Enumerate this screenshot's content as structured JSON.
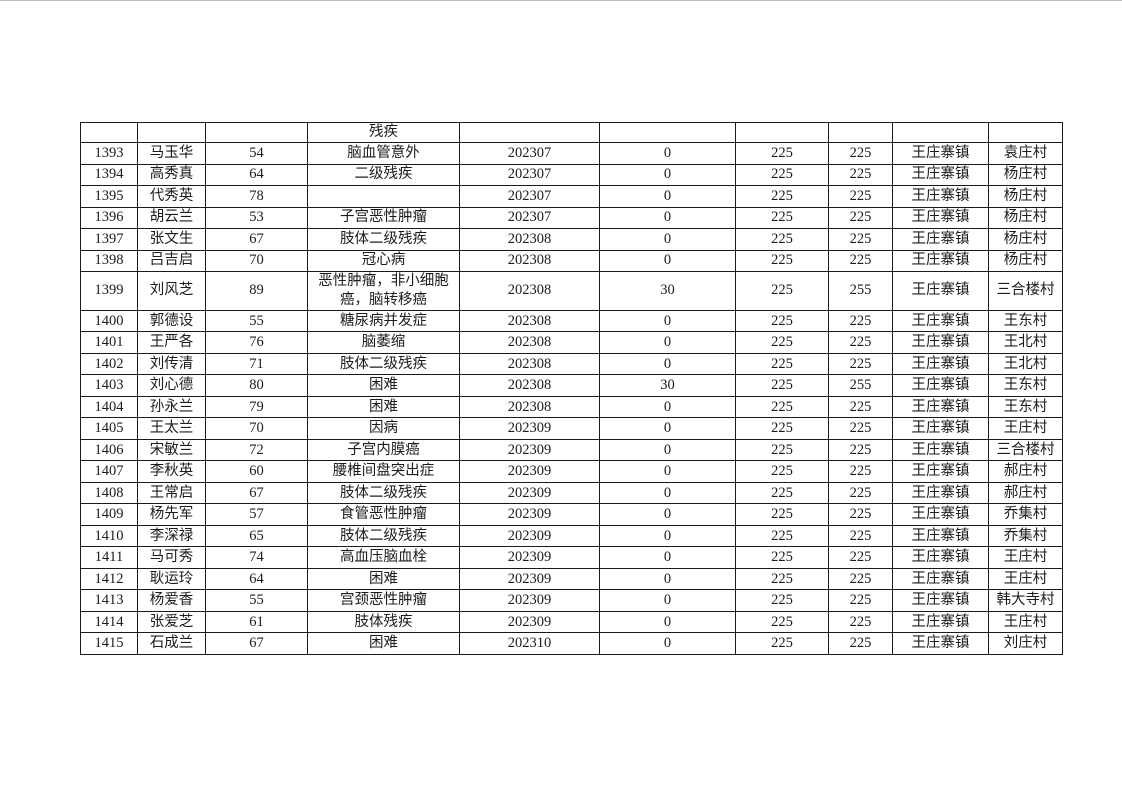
{
  "colors": {
    "page_background": "#ffffff",
    "table_border": "#1a1a1a",
    "text": "#1c1c1c"
  },
  "table": {
    "partial_top_row": {
      "id": "",
      "name": "",
      "age": "",
      "condition": "残疾",
      "month": "",
      "col6": "",
      "col7": "",
      "col8": "",
      "town": "",
      "village": ""
    },
    "rows": [
      {
        "id": "1393",
        "name": "马玉华",
        "age": "54",
        "condition": "脑血管意外",
        "month": "202307",
        "col6": "0",
        "col7": "225",
        "col8": "225",
        "town": "王庄寨镇",
        "village": "袁庄村"
      },
      {
        "id": "1394",
        "name": "高秀真",
        "age": "64",
        "condition": "二级残疾",
        "month": "202307",
        "col6": "0",
        "col7": "225",
        "col8": "225",
        "town": "王庄寨镇",
        "village": "杨庄村"
      },
      {
        "id": "1395",
        "name": "代秀英",
        "age": "78",
        "condition": "",
        "month": "202307",
        "col6": "0",
        "col7": "225",
        "col8": "225",
        "town": "王庄寨镇",
        "village": "杨庄村"
      },
      {
        "id": "1396",
        "name": "胡云兰",
        "age": "53",
        "condition": "子宫恶性肿瘤",
        "month": "202307",
        "col6": "0",
        "col7": "225",
        "col8": "225",
        "town": "王庄寨镇",
        "village": "杨庄村"
      },
      {
        "id": "1397",
        "name": "张文生",
        "age": "67",
        "condition": "肢体二级残疾",
        "month": "202308",
        "col6": "0",
        "col7": "225",
        "col8": "225",
        "town": "王庄寨镇",
        "village": "杨庄村"
      },
      {
        "id": "1398",
        "name": "吕吉启",
        "age": "70",
        "condition": "冠心病",
        "month": "202308",
        "col6": "0",
        "col7": "225",
        "col8": "225",
        "town": "王庄寨镇",
        "village": "杨庄村"
      },
      {
        "id": "1399",
        "name": "刘风芝",
        "age": "89",
        "condition": "恶性肿瘤，非小细胞癌，脑转移癌",
        "month": "202308",
        "col6": "30",
        "col7": "225",
        "col8": "255",
        "town": "王庄寨镇",
        "village": "三合楼村"
      },
      {
        "id": "1400",
        "name": "郭德设",
        "age": "55",
        "condition": "糖尿病并发症",
        "month": "202308",
        "col6": "0",
        "col7": "225",
        "col8": "225",
        "town": "王庄寨镇",
        "village": "王东村"
      },
      {
        "id": "1401",
        "name": "王严各",
        "age": "76",
        "condition": "脑萎缩",
        "month": "202308",
        "col6": "0",
        "col7": "225",
        "col8": "225",
        "town": "王庄寨镇",
        "village": "王北村"
      },
      {
        "id": "1402",
        "name": "刘传清",
        "age": "71",
        "condition": "肢体二级残疾",
        "month": "202308",
        "col6": "0",
        "col7": "225",
        "col8": "225",
        "town": "王庄寨镇",
        "village": "王北村"
      },
      {
        "id": "1403",
        "name": "刘心德",
        "age": "80",
        "condition": "困难",
        "month": "202308",
        "col6": "30",
        "col7": "225",
        "col8": "255",
        "town": "王庄寨镇",
        "village": "王东村"
      },
      {
        "id": "1404",
        "name": "孙永兰",
        "age": "79",
        "condition": "困难",
        "month": "202308",
        "col6": "0",
        "col7": "225",
        "col8": "225",
        "town": "王庄寨镇",
        "village": "王东村"
      },
      {
        "id": "1405",
        "name": "王太兰",
        "age": "70",
        "condition": "因病",
        "month": "202309",
        "col6": "0",
        "col7": "225",
        "col8": "225",
        "town": "王庄寨镇",
        "village": "王庄村"
      },
      {
        "id": "1406",
        "name": "宋敏兰",
        "age": "72",
        "condition": "子宫内膜癌",
        "month": "202309",
        "col6": "0",
        "col7": "225",
        "col8": "225",
        "town": "王庄寨镇",
        "village": "三合楼村"
      },
      {
        "id": "1407",
        "name": "李秋英",
        "age": "60",
        "condition": "腰椎间盘突出症",
        "month": "202309",
        "col6": "0",
        "col7": "225",
        "col8": "225",
        "town": "王庄寨镇",
        "village": "郝庄村"
      },
      {
        "id": "1408",
        "name": "王常启",
        "age": "67",
        "condition": "肢体二级残疾",
        "month": "202309",
        "col6": "0",
        "col7": "225",
        "col8": "225",
        "town": "王庄寨镇",
        "village": "郝庄村"
      },
      {
        "id": "1409",
        "name": "杨先军",
        "age": "57",
        "condition": "食管恶性肿瘤",
        "month": "202309",
        "col6": "0",
        "col7": "225",
        "col8": "225",
        "town": "王庄寨镇",
        "village": "乔集村"
      },
      {
        "id": "1410",
        "name": "李深禄",
        "age": "65",
        "condition": "肢体二级残疾",
        "month": "202309",
        "col6": "0",
        "col7": "225",
        "col8": "225",
        "town": "王庄寨镇",
        "village": "乔集村"
      },
      {
        "id": "1411",
        "name": "马可秀",
        "age": "74",
        "condition": "高血压脑血栓",
        "month": "202309",
        "col6": "0",
        "col7": "225",
        "col8": "225",
        "town": "王庄寨镇",
        "village": "王庄村"
      },
      {
        "id": "1412",
        "name": "耿运玲",
        "age": "64",
        "condition": "困难",
        "month": "202309",
        "col6": "0",
        "col7": "225",
        "col8": "225",
        "town": "王庄寨镇",
        "village": "王庄村"
      },
      {
        "id": "1413",
        "name": "杨爱香",
        "age": "55",
        "condition": "宫颈恶性肿瘤",
        "month": "202309",
        "col6": "0",
        "col7": "225",
        "col8": "225",
        "town": "王庄寨镇",
        "village": "韩大寺村"
      },
      {
        "id": "1414",
        "name": "张爱芝",
        "age": "61",
        "condition": "肢体残疾",
        "month": "202309",
        "col6": "0",
        "col7": "225",
        "col8": "225",
        "town": "王庄寨镇",
        "village": "王庄村"
      },
      {
        "id": "1415",
        "name": "石成兰",
        "age": "67",
        "condition": "困难",
        "month": "202310",
        "col6": "0",
        "col7": "225",
        "col8": "225",
        "town": "王庄寨镇",
        "village": "刘庄村"
      }
    ]
  }
}
